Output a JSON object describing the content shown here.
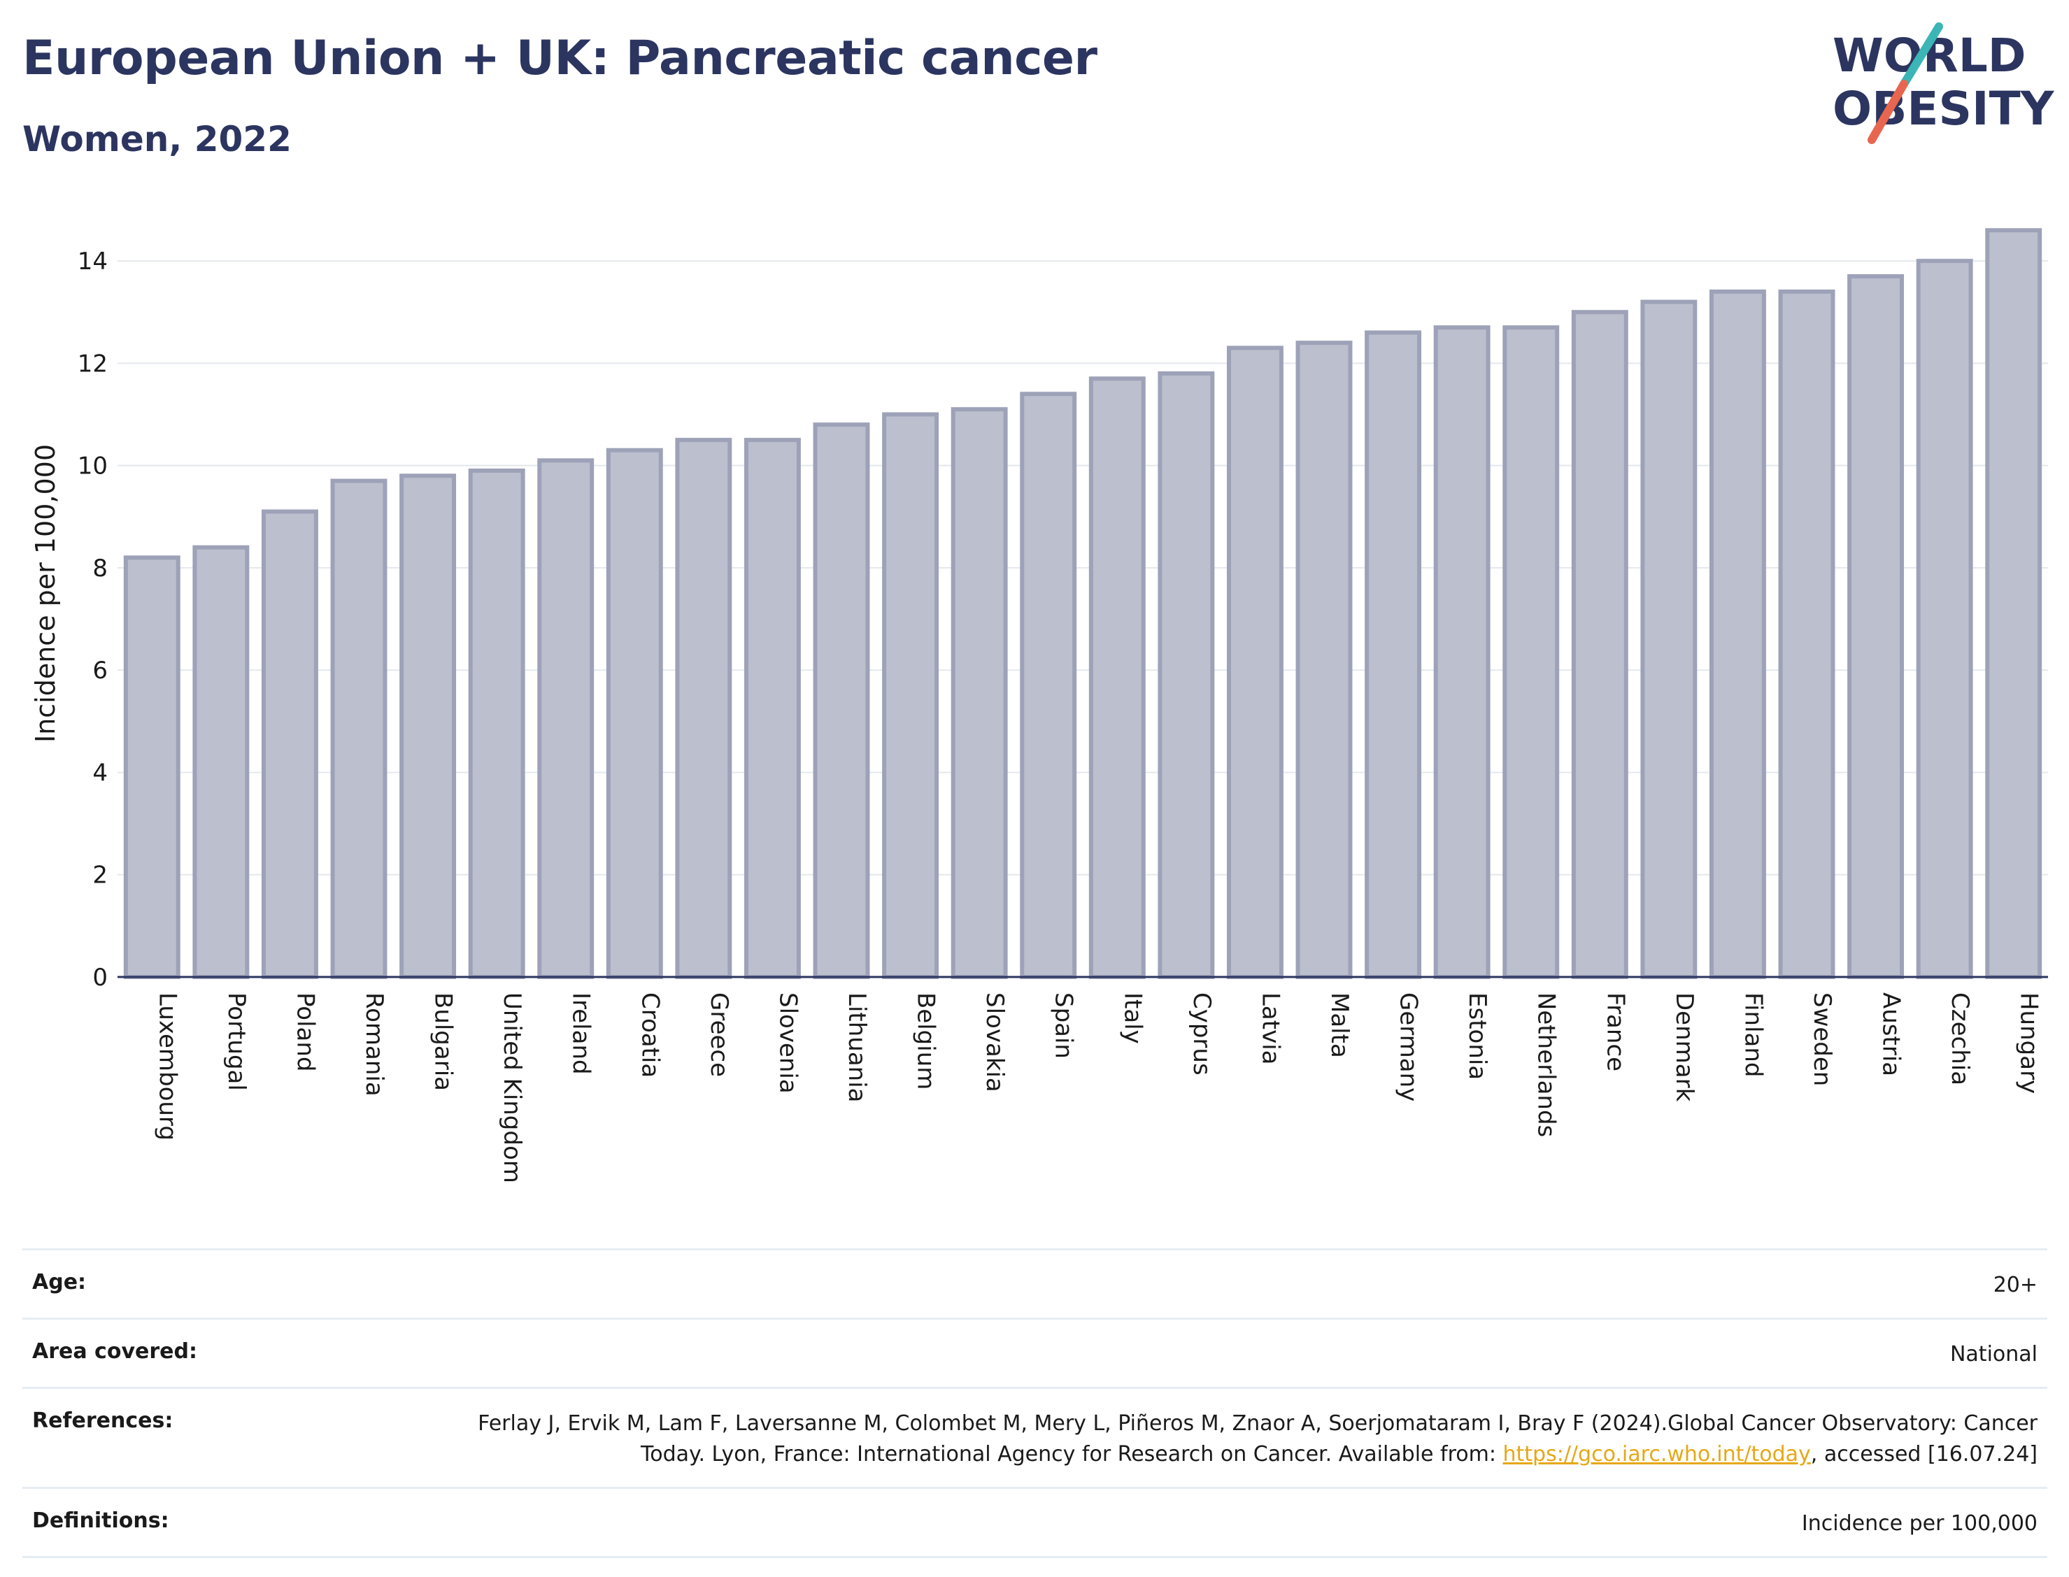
{
  "header": {
    "title": "European Union + UK: Pancreatic cancer",
    "subtitle": "Women, 2022"
  },
  "logo": {
    "line1": "WORLD",
    "line2": "OBESITY",
    "brand_color": "#2c3560",
    "slash_colors": [
      "#3bb5b5",
      "#e8664f"
    ]
  },
  "chart_data": {
    "type": "bar",
    "title": "European Union + UK: Pancreatic cancer",
    "subtitle": "Women, 2022",
    "xlabel": "",
    "ylabel": "Incidence per 100,000",
    "ylim": [
      0,
      15
    ],
    "yticks": [
      0,
      2,
      4,
      6,
      8,
      10,
      12,
      14
    ],
    "grid": true,
    "bar_fill": "#bcbfcd",
    "bar_stroke": "#9da2b8",
    "categories": [
      "Luxembourg",
      "Portugal",
      "Poland",
      "Romania",
      "Bulgaria",
      "United Kingdom",
      "Ireland",
      "Croatia",
      "Greece",
      "Slovenia",
      "Lithuania",
      "Belgium",
      "Slovakia",
      "Spain",
      "Italy",
      "Cyprus",
      "Latvia",
      "Malta",
      "Germany",
      "Estonia",
      "Netherlands",
      "France",
      "Denmark",
      "Finland",
      "Sweden",
      "Austria",
      "Czechia",
      "Hungary"
    ],
    "values": [
      8.2,
      8.4,
      9.1,
      9.7,
      9.8,
      9.9,
      10.1,
      10.3,
      10.5,
      10.5,
      10.8,
      11.0,
      11.1,
      11.4,
      11.7,
      11.8,
      12.3,
      12.4,
      12.6,
      12.7,
      12.7,
      13.0,
      13.2,
      13.4,
      13.4,
      13.7,
      14.0,
      14.6
    ]
  },
  "meta": {
    "age_label": "Age:",
    "age_value": "20+",
    "area_label": "Area covered:",
    "area_value": "National",
    "references_label": "References:",
    "references_text_1": "Ferlay J, Ervik M, Lam F, Laversanne M, Colombet M, Mery L, Piñeros M, Znaor A, Soerjomataram I, Bray F (2024).Global Cancer Observatory: Cancer Today. Lyon, France: International Agency for Research on Cancer. Available from: ",
    "references_link": "https://gco.iarc.who.int/today",
    "references_text_2": ", accessed [16.07.24]",
    "definitions_label": "Definitions:",
    "definitions_value": "Incidence per 100,000"
  }
}
